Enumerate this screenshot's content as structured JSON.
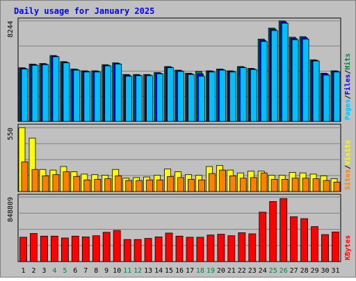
{
  "chart_data": {
    "type": "bar",
    "title": "Daily usage for January 2025",
    "x": [
      "1",
      "2",
      "3",
      "4",
      "5",
      "6",
      "7",
      "8",
      "9",
      "10",
      "11",
      "12",
      "13",
      "14",
      "15",
      "16",
      "17",
      "18",
      "19",
      "20",
      "21",
      "22",
      "23",
      "24",
      "25",
      "26",
      "27",
      "28",
      "29",
      "30",
      "31"
    ],
    "weekend_days": [
      "4",
      "5",
      "11",
      "12",
      "18",
      "19",
      "25",
      "26"
    ],
    "panels": [
      {
        "id": "hits",
        "max_label": "8244",
        "ylim": [
          0,
          8244
        ],
        "ylabels": [
          "Pages",
          "Files",
          "Hits"
        ],
        "series": [
          {
            "name": "Hits",
            "color": "#008040",
            "values": [
              4400,
              4700,
              4750,
              5400,
              4900,
              4300,
              4150,
              4150,
              4650,
              4800,
              3850,
              3850,
              3850,
              4000,
              4500,
              4200,
              3950,
              4100,
              4150,
              4300,
              4150,
              4500,
              4350,
              6750,
              7650,
              8244,
              6900,
              6950,
              5050,
              3950,
              4150
            ]
          },
          {
            "name": "Files",
            "color": "#0000ff",
            "values": [
              4350,
              4650,
              4700,
              5350,
              4850,
              4250,
              4100,
              4100,
              4600,
              4750,
              3800,
              3800,
              3800,
              3950,
              4450,
              4150,
              3900,
              3900,
              4100,
              4250,
              4100,
              4450,
              4300,
              6650,
              7550,
              8150,
              6800,
              6850,
              5000,
              3900,
              4100
            ]
          },
          {
            "name": "Pages",
            "color": "#00c0ff",
            "values": [
              4300,
              4600,
              4650,
              5300,
              4800,
              4200,
              4050,
              4050,
              4550,
              4700,
              3700,
              3750,
              3750,
              3900,
              4400,
              4100,
              3850,
              3700,
              4050,
              4200,
              4050,
              4400,
              4250,
              6550,
              7450,
              8050,
              6700,
              6750,
              4950,
              3800,
              4050
            ]
          }
        ]
      },
      {
        "id": "visits",
        "max_label": "550",
        "ylim": [
          0,
          550
        ],
        "ylabels": [
          "Sites",
          "Visits"
        ],
        "series": [
          {
            "name": "Visits",
            "color": "#ffff00",
            "values": [
              550,
              460,
              190,
              185,
              215,
              170,
              150,
              145,
              140,
              190,
              115,
              120,
              125,
              140,
              195,
              170,
              145,
              140,
              215,
              225,
              185,
              160,
              175,
              175,
              140,
              140,
              165,
              160,
              150,
              135,
              110
            ]
          },
          {
            "name": "Sites",
            "color": "#ff8000",
            "values": [
              255,
              190,
              135,
              145,
              170,
              130,
              100,
              105,
              110,
              135,
              95,
              95,
              100,
              100,
              130,
              120,
              105,
              100,
              155,
              185,
              135,
              115,
              120,
              160,
              105,
              105,
              115,
              115,
              110,
              95,
              80
            ]
          }
        ]
      },
      {
        "id": "kbytes",
        "max_label": "848809",
        "ylim": [
          0,
          848809
        ],
        "ylabels": [
          "KBytes"
        ],
        "series": [
          {
            "name": "KBytes",
            "color": "#ff0000",
            "values": [
              320000,
              370000,
              335000,
              335000,
              310000,
              335000,
              325000,
              340000,
              385000,
              410000,
              290000,
              290000,
              305000,
              325000,
              375000,
              335000,
              320000,
              320000,
              350000,
              360000,
              340000,
              380000,
              365000,
              650000,
              790000,
              830000,
              590000,
              565000,
              460000,
              355000,
              390000
            ]
          }
        ]
      }
    ]
  }
}
